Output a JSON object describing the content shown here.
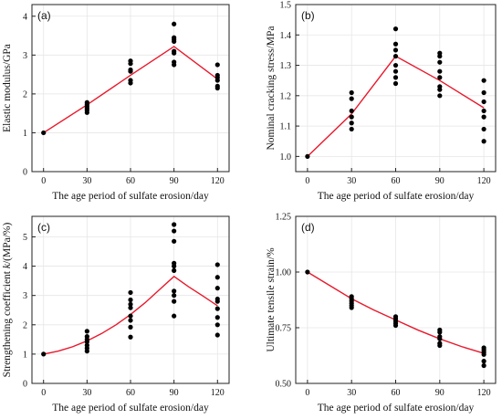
{
  "colors": {
    "points": "#000000",
    "line": "#e8192c",
    "grid": "#e6e6e6",
    "axis": "#222222"
  },
  "chart_data": [
    {
      "type": "scatter",
      "panel_label": "(a)",
      "xlabel": "The age period of sulfate erosion/day",
      "ylabel": "Elastic modulus/GPa",
      "x_ticks": [
        0,
        30,
        60,
        90,
        120
      ],
      "y_ticks": [
        0,
        1,
        2,
        3,
        4
      ],
      "xlim": [
        -8,
        128
      ],
      "ylim": [
        0,
        4.3
      ],
      "grid": true,
      "series": [
        {
          "values": [
            [
              0,
              1.0
            ],
            [
              30,
              1.52
            ],
            [
              30,
              1.58
            ],
            [
              30,
              1.63
            ],
            [
              30,
              1.68
            ],
            [
              30,
              1.73
            ],
            [
              30,
              1.78
            ],
            [
              60,
              2.28
            ],
            [
              60,
              2.35
            ],
            [
              60,
              2.58
            ],
            [
              60,
              2.62
            ],
            [
              60,
              2.78
            ],
            [
              60,
              2.85
            ],
            [
              90,
              2.75
            ],
            [
              90,
              2.82
            ],
            [
              90,
              3.05
            ],
            [
              90,
              3.1
            ],
            [
              90,
              3.35
            ],
            [
              90,
              3.4
            ],
            [
              90,
              3.45
            ],
            [
              90,
              3.8
            ],
            [
              120,
              2.15
            ],
            [
              120,
              2.2
            ],
            [
              120,
              2.35
            ],
            [
              120,
              2.42
            ],
            [
              120,
              2.48
            ],
            [
              120,
              2.75
            ]
          ]
        }
      ],
      "fit": {
        "x": [
          0,
          30,
          60,
          90,
          120
        ],
        "y": [
          1.0,
          1.72,
          2.48,
          3.22,
          2.38
        ]
      }
    },
    {
      "type": "scatter",
      "panel_label": "(b)",
      "xlabel": "The age period of sulfate erosion/day",
      "ylabel": "Nominal cracking stress/MPa",
      "x_ticks": [
        0,
        30,
        60,
        90,
        120
      ],
      "y_ticks": [
        1.0,
        1.1,
        1.2,
        1.3,
        1.4,
        1.5
      ],
      "xlim": [
        -8,
        128
      ],
      "ylim": [
        0.95,
        1.5
      ],
      "grid": true,
      "series": [
        {
          "values": [
            [
              0,
              1.0
            ],
            [
              30,
              1.09
            ],
            [
              30,
              1.11
            ],
            [
              30,
              1.13
            ],
            [
              30,
              1.15
            ],
            [
              30,
              1.19
            ],
            [
              30,
              1.21
            ],
            [
              60,
              1.24
            ],
            [
              60,
              1.26
            ],
            [
              60,
              1.28
            ],
            [
              60,
              1.3
            ],
            [
              60,
              1.33
            ],
            [
              60,
              1.35
            ],
            [
              60,
              1.37
            ],
            [
              60,
              1.42
            ],
            [
              90,
              1.2
            ],
            [
              90,
              1.22
            ],
            [
              90,
              1.23
            ],
            [
              90,
              1.26
            ],
            [
              90,
              1.28
            ],
            [
              90,
              1.31
            ],
            [
              90,
              1.33
            ],
            [
              90,
              1.34
            ],
            [
              120,
              1.05
            ],
            [
              120,
              1.09
            ],
            [
              120,
              1.13
            ],
            [
              120,
              1.15
            ],
            [
              120,
              1.18
            ],
            [
              120,
              1.21
            ],
            [
              120,
              1.25
            ]
          ]
        }
      ],
      "fit": {
        "x": [
          0,
          30,
          60,
          90,
          120
        ],
        "y": [
          1.0,
          1.14,
          1.33,
          1.25,
          1.16
        ]
      }
    },
    {
      "type": "scatter",
      "panel_label": "(c)",
      "xlabel": "The age period of sulfate erosion/day",
      "ylabel_prefix": "Strengthening coefficient ",
      "ylabel_var": "k",
      "ylabel_suffix": "/(MPa/%)",
      "x_ticks": [
        0,
        30,
        60,
        90,
        120
      ],
      "y_ticks": [
        0,
        1,
        2,
        3,
        4,
        5
      ],
      "xlim": [
        -8,
        128
      ],
      "ylim": [
        0,
        5.7
      ],
      "grid": true,
      "series": [
        {
          "values": [
            [
              0,
              1.0
            ],
            [
              30,
              1.1
            ],
            [
              30,
              1.2
            ],
            [
              30,
              1.3
            ],
            [
              30,
              1.42
            ],
            [
              30,
              1.5
            ],
            [
              30,
              1.6
            ],
            [
              30,
              1.78
            ],
            [
              60,
              1.58
            ],
            [
              60,
              1.92
            ],
            [
              60,
              2.15
            ],
            [
              60,
              2.3
            ],
            [
              60,
              2.58
            ],
            [
              60,
              2.7
            ],
            [
              60,
              2.85
            ],
            [
              60,
              3.1
            ],
            [
              90,
              2.3
            ],
            [
              90,
              2.8
            ],
            [
              90,
              3.0
            ],
            [
              90,
              3.15
            ],
            [
              90,
              3.85
            ],
            [
              90,
              4.0
            ],
            [
              90,
              4.1
            ],
            [
              90,
              4.85
            ],
            [
              90,
              5.2
            ],
            [
              90,
              5.42
            ],
            [
              120,
              1.65
            ],
            [
              120,
              2.0
            ],
            [
              120,
              2.25
            ],
            [
              120,
              2.55
            ],
            [
              120,
              2.8
            ],
            [
              120,
              2.88
            ],
            [
              120,
              3.25
            ],
            [
              120,
              3.62
            ],
            [
              120,
              4.05
            ]
          ]
        }
      ],
      "fit": {
        "x": [
          0,
          10,
          20,
          30,
          40,
          50,
          60,
          70,
          80,
          90,
          100,
          110,
          120
        ],
        "y": [
          1.0,
          1.1,
          1.25,
          1.45,
          1.7,
          2.0,
          2.35,
          2.75,
          3.2,
          3.65,
          3.3,
          2.98,
          2.65
        ]
      }
    },
    {
      "type": "scatter",
      "panel_label": "(d)",
      "xlabel": "The age period of sulfate erosion/day",
      "ylabel": "Ultimate tensile strain/%",
      "x_ticks": [
        0,
        30,
        60,
        90,
        120
      ],
      "y_ticks": [
        "0.50",
        "0.75",
        "1.00",
        "1.25"
      ],
      "xlim": [
        -8,
        128
      ],
      "ylim": [
        0.5,
        1.25
      ],
      "grid": true,
      "series": [
        {
          "values": [
            [
              0,
              1.0
            ],
            [
              30,
              0.84
            ],
            [
              30,
              0.85
            ],
            [
              30,
              0.86
            ],
            [
              30,
              0.87
            ],
            [
              30,
              0.88
            ],
            [
              30,
              0.89
            ],
            [
              60,
              0.76
            ],
            [
              60,
              0.77
            ],
            [
              60,
              0.78
            ],
            [
              60,
              0.79
            ],
            [
              60,
              0.8
            ],
            [
              90,
              0.67
            ],
            [
              90,
              0.68
            ],
            [
              90,
              0.7
            ],
            [
              90,
              0.71
            ],
            [
              90,
              0.73
            ],
            [
              90,
              0.74
            ],
            [
              120,
              0.58
            ],
            [
              120,
              0.6
            ],
            [
              120,
              0.63
            ],
            [
              120,
              0.64
            ],
            [
              120,
              0.65
            ],
            [
              120,
              0.66
            ]
          ]
        }
      ],
      "fit": {
        "x": [
          0,
          15,
          30,
          45,
          60,
          75,
          90,
          105,
          120
        ],
        "y": [
          1.0,
          0.94,
          0.88,
          0.83,
          0.785,
          0.74,
          0.7,
          0.665,
          0.635
        ]
      }
    }
  ]
}
